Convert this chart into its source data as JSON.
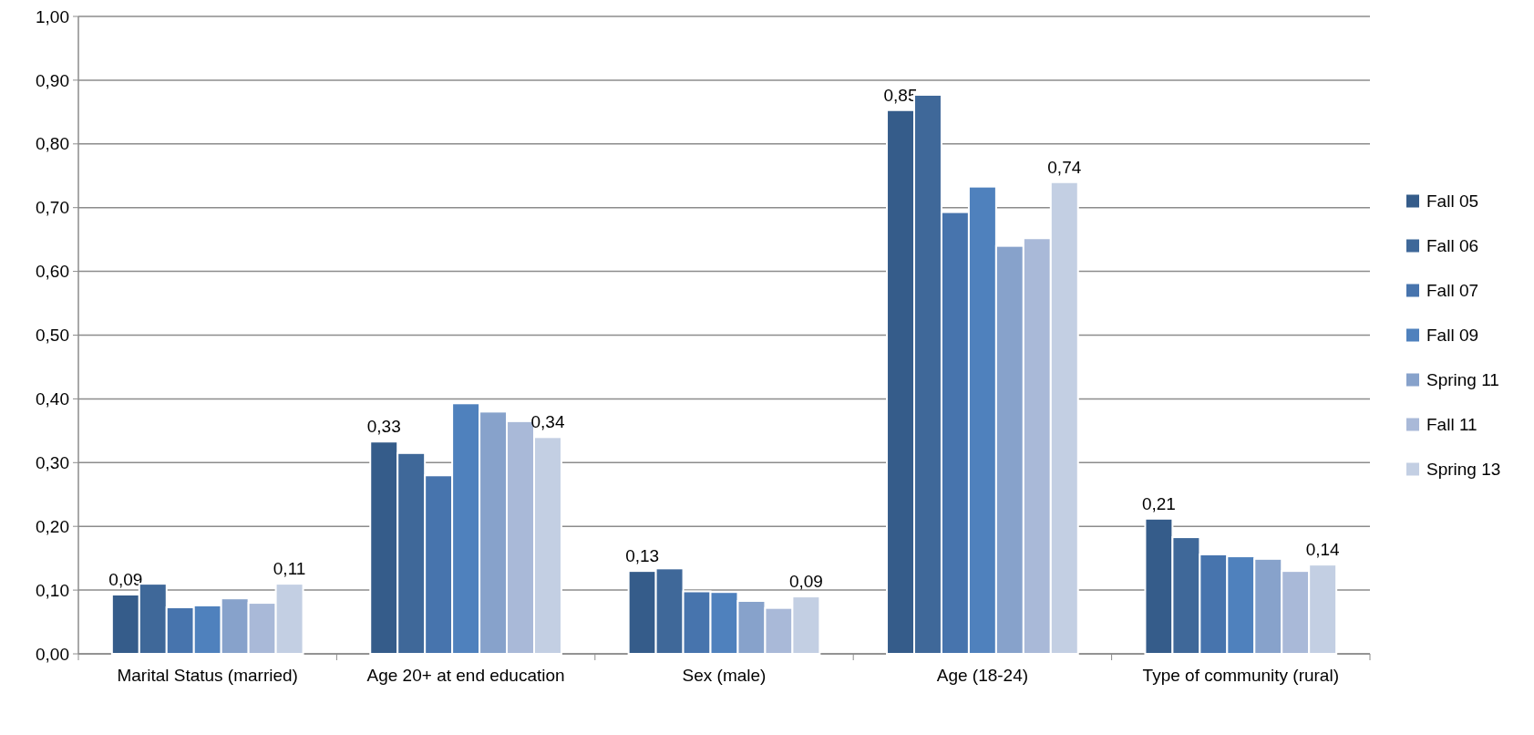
{
  "chart_data": {
    "type": "bar",
    "categories": [
      "Marital Status (married)",
      "Age 20+ at end education",
      "Sex (male)",
      "Age (18-24)",
      "Type of community (rural)"
    ],
    "series": [
      {
        "name": "Fall 05",
        "color": "#355c8a",
        "values": [
          0.093,
          0.333,
          0.13,
          0.853,
          0.212
        ],
        "value_labels": [
          "0,09",
          "0,33",
          "0,13",
          "0,85",
          "0,21"
        ]
      },
      {
        "name": "Fall 06",
        "color": "#3f6899",
        "values": [
          0.11,
          0.315,
          0.134,
          0.877,
          0.183
        ]
      },
      {
        "name": "Fall 07",
        "color": "#4774ad",
        "values": [
          0.073,
          0.28,
          0.098,
          0.693,
          0.156
        ]
      },
      {
        "name": "Fall 09",
        "color": "#4f81bd",
        "values": [
          0.076,
          0.393,
          0.097,
          0.733,
          0.153
        ]
      },
      {
        "name": "Spring 11",
        "color": "#87a2cb",
        "values": [
          0.087,
          0.38,
          0.083,
          0.64,
          0.149
        ]
      },
      {
        "name": "Fall 11",
        "color": "#a9b9d8",
        "values": [
          0.08,
          0.365,
          0.072,
          0.652,
          0.13
        ]
      },
      {
        "name": "Spring 13",
        "color": "#c3cfe3",
        "values": [
          0.11,
          0.34,
          0.09,
          0.74,
          0.14
        ],
        "value_labels": [
          "0,11",
          "0,34",
          "0,09",
          "0,74",
          "0,14"
        ]
      }
    ],
    "ylim": [
      0,
      1
    ],
    "yticks": [
      {
        "value": 0,
        "label": "0,00"
      },
      {
        "value": 0.1,
        "label": "0,10"
      },
      {
        "value": 0.2,
        "label": "0,20"
      },
      {
        "value": 0.3,
        "label": "0,30"
      },
      {
        "value": 0.4,
        "label": "0,40"
      },
      {
        "value": 0.5,
        "label": "0,50"
      },
      {
        "value": 0.6,
        "label": "0,60"
      },
      {
        "value": 0.7,
        "label": "0,70"
      },
      {
        "value": 0.8,
        "label": "0,80"
      },
      {
        "value": 0.9,
        "label": "0,90"
      },
      {
        "value": 1,
        "label": "1,00"
      }
    ],
    "grid": "y",
    "legend": "right"
  }
}
